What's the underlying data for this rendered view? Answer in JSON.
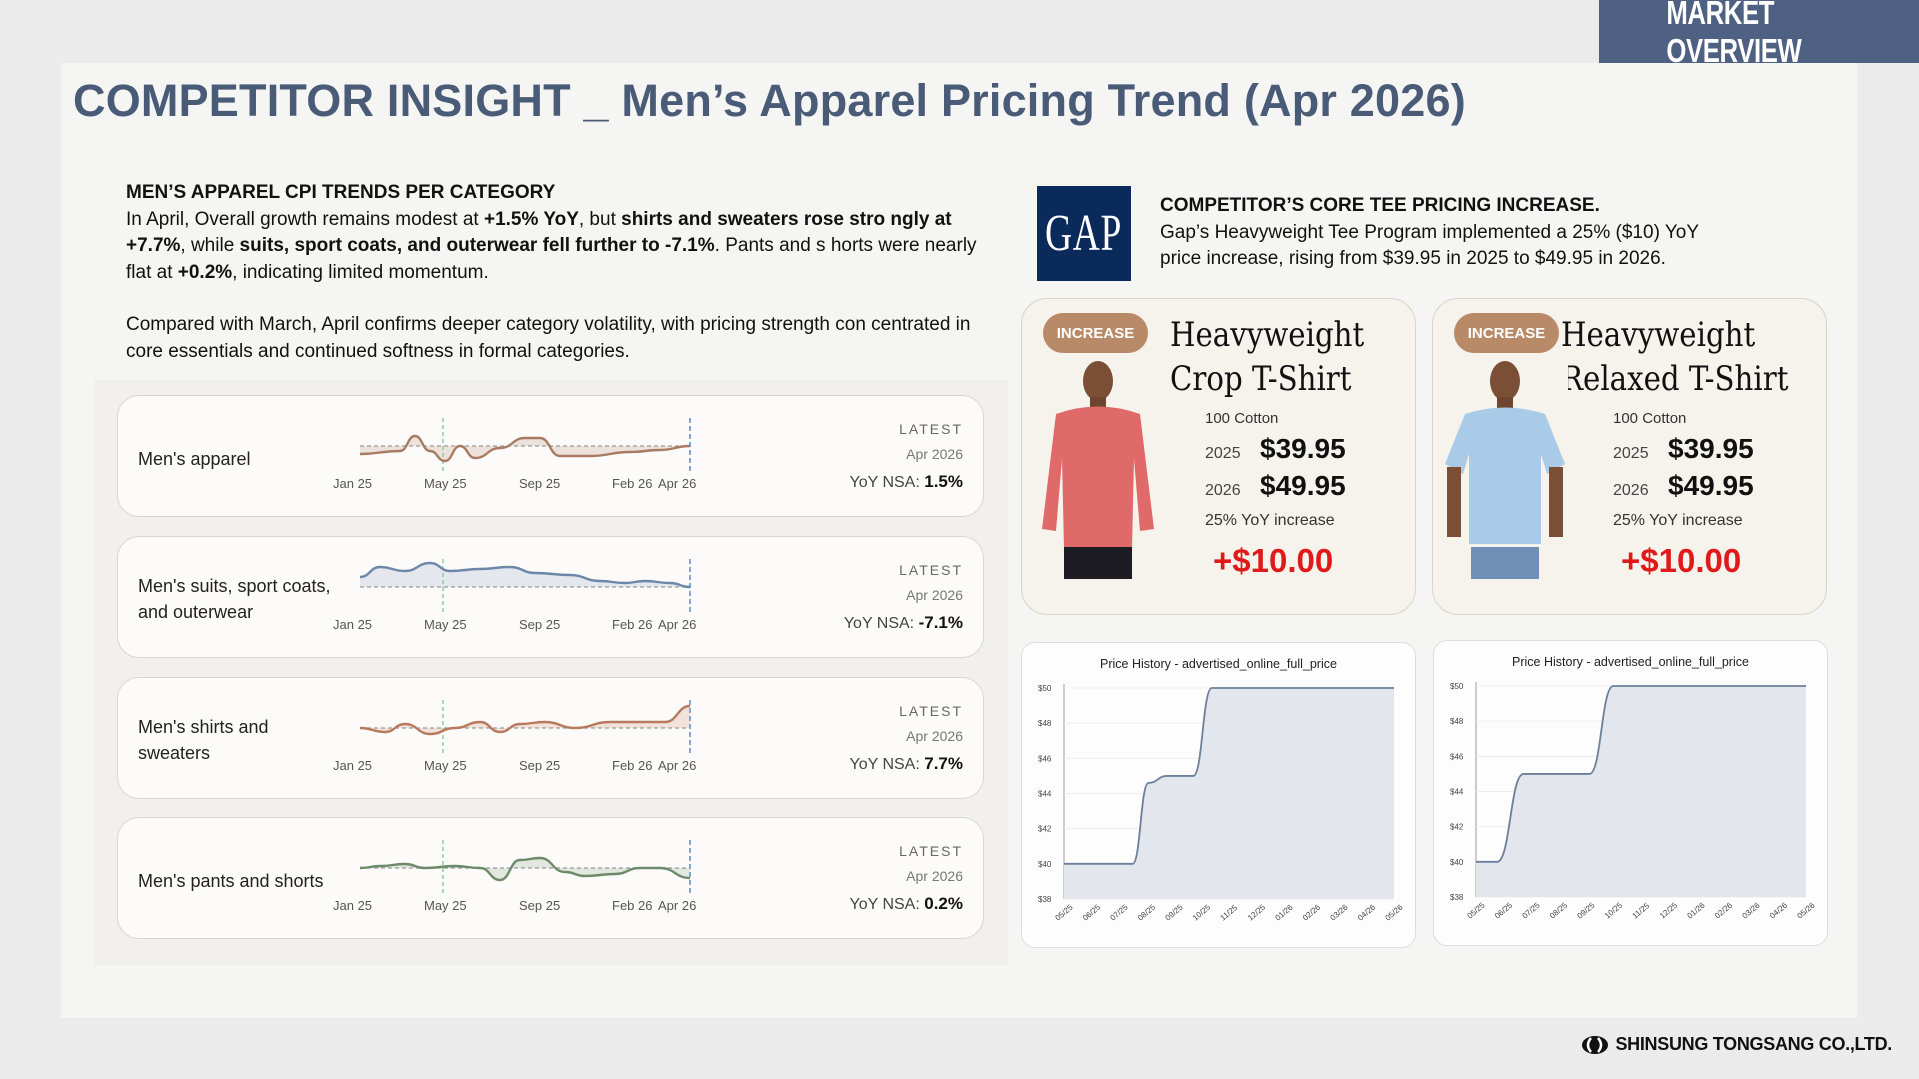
{
  "header": {
    "badge": "MARKET OVERVIEW",
    "title": "COMPETITOR INSIGHT _ Men’s Apparel Pricing Trend (Apr 2026)"
  },
  "cpi": {
    "heading": "MEN’S APPAREL CPI TRENDS PER CATEGORY",
    "p1_a": "In April, Overall growth remains modest at ",
    "p1_b": "+1.5% YoY",
    "p1_c": ", but ",
    "p1_d": "shirts and sweaters rose stro ngly at +7.7%",
    "p1_e": ", while ",
    "p1_f": "suits, sport coats, and outerwear fell further to -7.1%",
    "p1_g": ". Pants and s horts were nearly flat at ",
    "p1_h": "+0.2%",
    "p1_i": ", indicating limited momentum.",
    "p2": "Compared with March, April confirms deeper category volatility, with pricing strength con centrated in core essentials and continued softness in formal categories."
  },
  "trend_cards": [
    {
      "label_lines": [
        "Men's apparel"
      ],
      "latest": "LATEST",
      "date": "Apr 2026",
      "yoy_label": "YoY NSA:",
      "yoy_value": "1.5%",
      "ticks": [
        "Jan 25",
        "May 25",
        "Sep 25",
        "Feb 26",
        "Apr 26"
      ],
      "color": "#a87a62",
      "fill": "#e9dcd3"
    },
    {
      "label_lines": [
        "Men's suits, sport coats,",
        "and outerwear"
      ],
      "latest": "LATEST",
      "date": "Apr 2026",
      "yoy_label": "YoY NSA:",
      "yoy_value": "-7.1%",
      "ticks": [
        "Jan 25",
        "May 25",
        "Sep 25",
        "Feb 26",
        "Apr 26"
      ],
      "color": "#6d87a8",
      "fill": "#dde2ea"
    },
    {
      "label_lines": [
        "Men's shirts and",
        "sweaters"
      ],
      "latest": "LATEST",
      "date": "Apr 2026",
      "yoy_label": "YoY NSA:",
      "yoy_value": "7.7%",
      "ticks": [
        "Jan 25",
        "May 25",
        "Sep 25",
        "Feb 26",
        "Apr 26"
      ],
      "color": "#b77a5f",
      "fill": "#efdcd2"
    },
    {
      "label_lines": [
        "Men's pants and shorts"
      ],
      "latest": "LATEST",
      "date": "Apr 2026",
      "yoy_label": "YoY NSA:",
      "yoy_value": "0.2%",
      "ticks": [
        "Jan 25",
        "May 25",
        "Sep 25",
        "Feb 26",
        "Apr 26"
      ],
      "color": "#6e8a6a",
      "fill": "#dbe4d8"
    }
  ],
  "competitor": {
    "logo": "GAP",
    "heading": "COMPETITOR’S CORE TEE PRICING INCREASE.",
    "line1": "Gap’s Heavyweight Tee Program implemented a 25% ($10) YoY",
    "line2": "price increase, rising from $39.95 in 2025 to $49.95 in 2026."
  },
  "products": [
    {
      "pill": "INCREASE",
      "name1": "Heavyweight",
      "name2": "Crop T-Shirt",
      "material": "100 Cotton",
      "y1": "2025",
      "p1": "$39.95",
      "y2": "2026",
      "p2": "$49.95",
      "inc_text": "25% YoY increase",
      "inc_amt": "+$10.00",
      "shirt_color": "#e06a6a"
    },
    {
      "pill": "INCREASE",
      "name1": "Heavyweight",
      "name2": "Relaxed T-Shirt",
      "material": "100 Cotton",
      "y1": "2025",
      "p1": "$39.95",
      "y2": "2026",
      "p2": "$49.95",
      "inc_text": "25% YoY increase",
      "inc_amt": "+$10.00",
      "shirt_color": "#a9cbe8"
    }
  ],
  "history": [
    {
      "title": "Price History - advertised_online_full_price",
      "yticks": [
        "$50",
        "$48",
        "$46",
        "$44",
        "$42",
        "$40",
        "$38"
      ],
      "xticks": [
        "05/25",
        "06/25",
        "07/25",
        "08/25",
        "09/25",
        "10/25",
        "11/25",
        "12/25",
        "01/26",
        "02/26",
        "03/26",
        "04/26",
        "05/26"
      ]
    },
    {
      "title": "Price History - advertised_online_full_price",
      "yticks": [
        "$50",
        "$48",
        "$46",
        "$44",
        "$42",
        "$40",
        "$38"
      ],
      "xticks": [
        "05/25",
        "06/25",
        "07/25",
        "08/25",
        "09/25",
        "10/25",
        "11/25",
        "12/25",
        "01/26",
        "02/26",
        "03/26",
        "04/26",
        "05/26"
      ]
    }
  ],
  "footer": {
    "company": "SHINSUNG TONGSANG CO.,LTD."
  }
}
